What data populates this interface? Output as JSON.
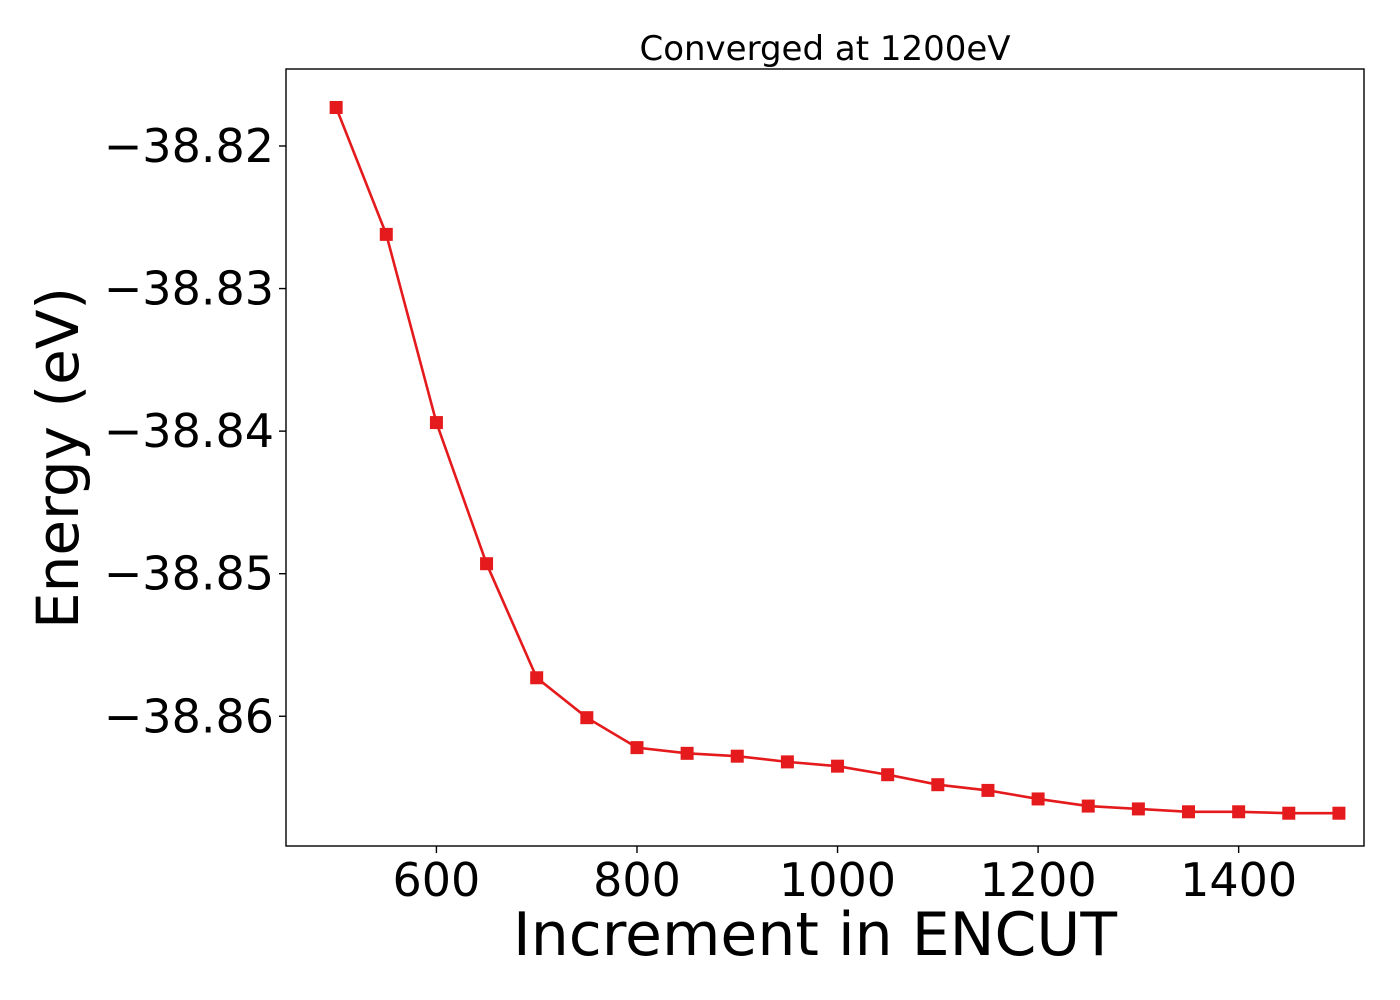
{
  "chart_data": {
    "type": "line",
    "title": "Converged at 1200eV",
    "xlabel": "Increment in ENCUT",
    "ylabel": "Energy (eV)",
    "x": [
      500,
      550,
      600,
      650,
      700,
      750,
      800,
      850,
      900,
      950,
      1000,
      1050,
      1100,
      1150,
      1200,
      1250,
      1300,
      1350,
      1400,
      1450,
      1500
    ],
    "series": [
      {
        "name": "",
        "color": "#e41a1c",
        "marker": "square",
        "values": [
          -38.8173,
          -38.8262,
          -38.8394,
          -38.8493,
          -38.8573,
          -38.8601,
          -38.8622,
          -38.8626,
          -38.8628,
          -38.8632,
          -38.8635,
          -38.8641,
          -38.8648,
          -38.8652,
          -38.8658,
          -38.8663,
          -38.8665,
          -38.8667,
          -38.8667,
          -38.8668,
          -38.8668
        ]
      }
    ],
    "xlim": [
      450,
      1525
    ],
    "ylim": [
      -38.8691,
      -38.8146
    ],
    "xticks": [
      600,
      800,
      1000,
      1200,
      1400
    ],
    "xtick_labels": [
      "600",
      "800",
      "1000",
      "1200",
      "1400"
    ],
    "yticks": [
      -38.82,
      -38.83,
      -38.84,
      -38.85,
      -38.86
    ],
    "ytick_labels": [
      "−38.82",
      "−38.83",
      "−38.84",
      "−38.85",
      "−38.86"
    ],
    "grid": false,
    "legend": "none"
  }
}
